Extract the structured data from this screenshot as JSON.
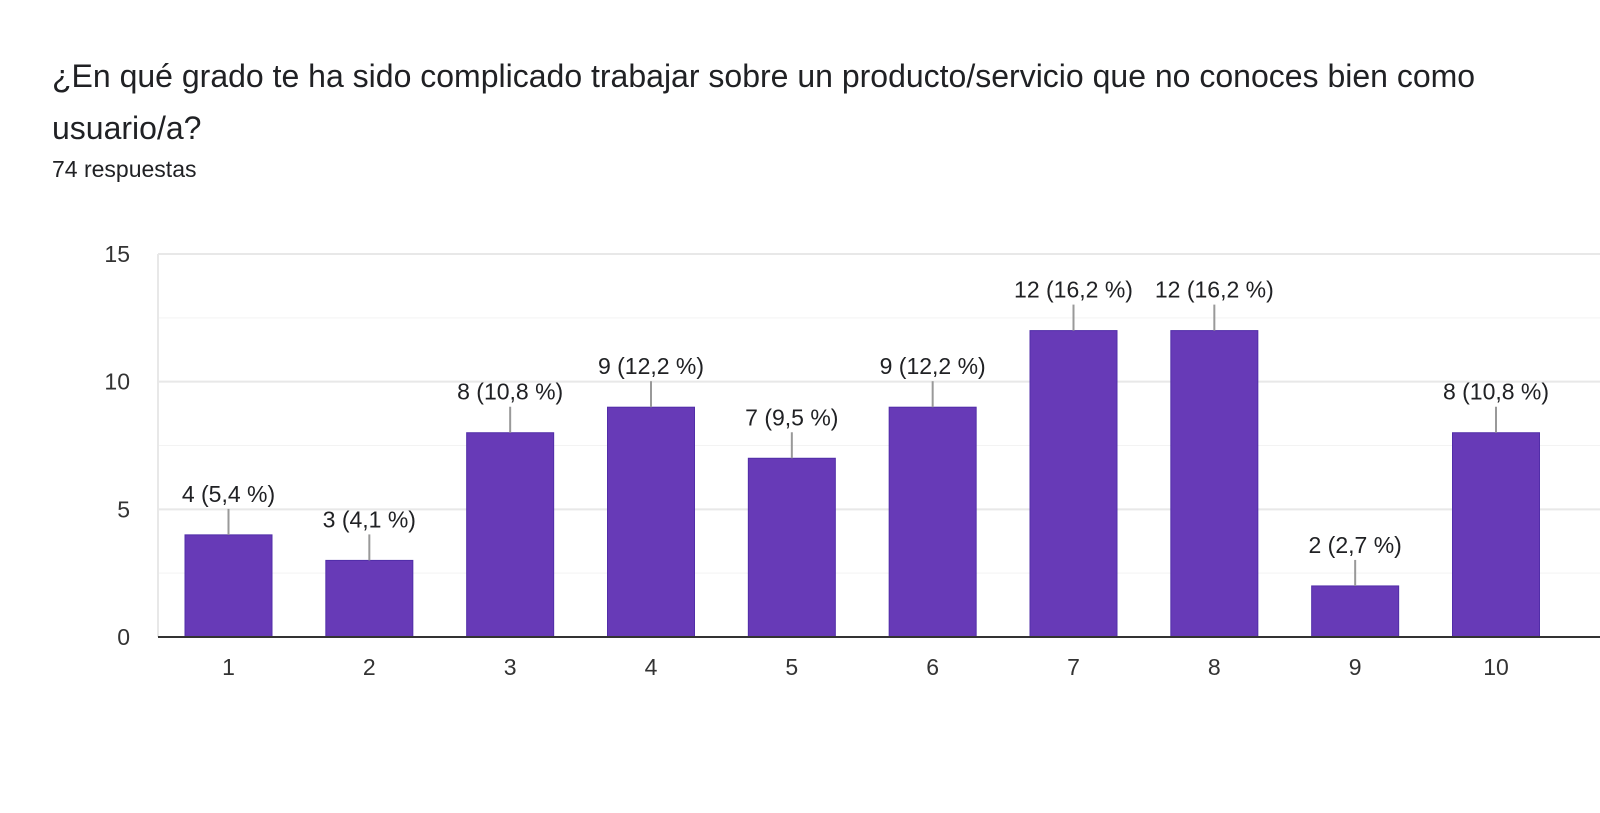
{
  "header": {
    "title": "¿En qué grado te ha sido complicado trabajar sobre un producto/servicio que no conoces bien como usuario/a?",
    "responses": "74 respuestas"
  },
  "colors": {
    "bar": "#673ab7",
    "grid": "#eeeeee",
    "axis": "#333333",
    "leader": "#999999"
  },
  "chart_data": {
    "type": "bar",
    "categories": [
      "1",
      "2",
      "3",
      "4",
      "5",
      "6",
      "7",
      "8",
      "9",
      "10"
    ],
    "values": [
      4,
      3,
      8,
      9,
      7,
      9,
      12,
      12,
      2,
      8
    ],
    "data_labels": [
      "4 (5,4 %)",
      "3 (4,1 %)",
      "8 (10,8 %)",
      "9 (12,2 %)",
      "7 (9,5 %)",
      "9 (12,2 %)",
      "12 (16,2 %)",
      "12 (16,2 %)",
      "2 (2,7 %)",
      "8 (10,8 %)"
    ],
    "ylim": [
      0,
      15
    ],
    "yticks": [
      "0",
      "5",
      "10",
      "15"
    ],
    "grid": true,
    "legend": "none",
    "title": "¿En qué grado te ha sido complicado trabajar sobre un producto/servicio que no conoces bien como usuario/a?",
    "xlabel": "",
    "ylabel": ""
  }
}
